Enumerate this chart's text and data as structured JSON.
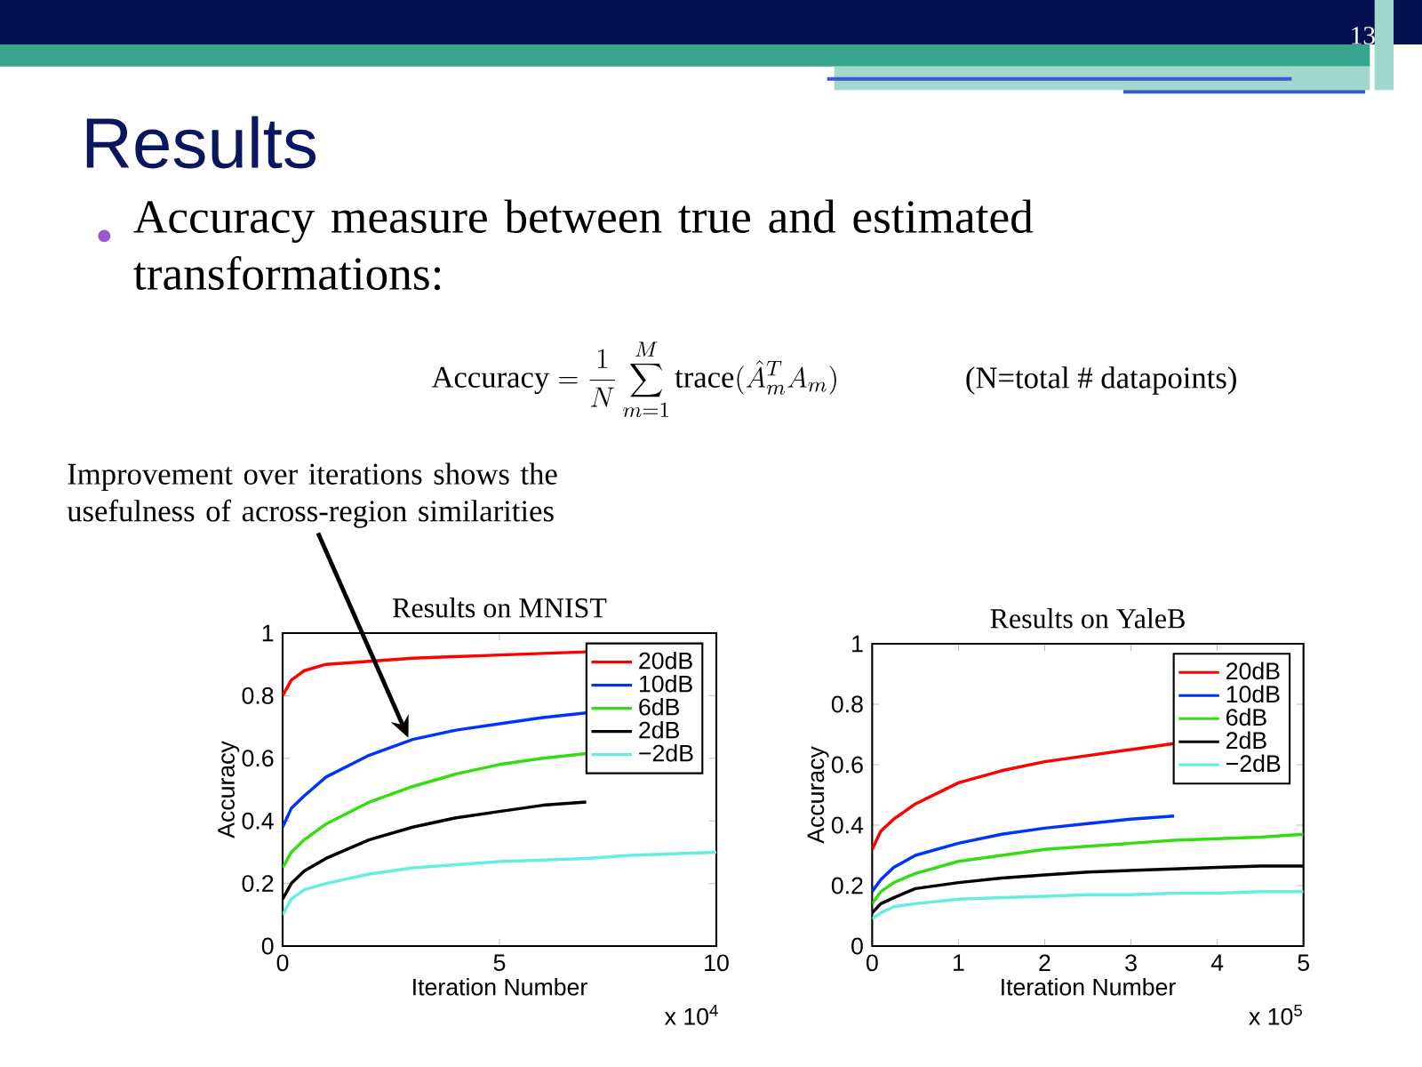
{
  "chart_data": [
    {
      "type": "line",
      "title": "Results on MNIST",
      "xlabel": "Iteration Number",
      "ylabel": "Accuracy",
      "x": [
        0,
        0.2,
        0.5,
        1,
        2,
        3,
        4,
        5,
        6,
        7,
        8,
        9,
        10
      ],
      "xlim": [
        0,
        10
      ],
      "ylim": [
        0,
        1
      ],
      "xticks": [
        0,
        5,
        10
      ],
      "yticks": [
        0,
        0.2,
        0.4,
        0.6,
        0.8,
        1
      ],
      "legend": "top right",
      "marker": "none",
      "line_style": "solid",
      "series": [
        {
          "name": "20dB",
          "color": "#ff0000",
          "values": [
            0.8,
            0.85,
            0.88,
            0.9,
            0.91,
            0.92,
            0.925,
            0.93,
            0.935,
            0.94,
            null,
            null,
            null
          ]
        },
        {
          "name": "10dB",
          "color": "#0033ff",
          "values": [
            0.38,
            0.44,
            0.48,
            0.54,
            0.61,
            0.66,
            0.69,
            0.71,
            0.73,
            0.745,
            null,
            null,
            null
          ]
        },
        {
          "name": "6dB",
          "color": "#33dd11",
          "values": [
            0.25,
            0.3,
            0.34,
            0.39,
            0.46,
            0.51,
            0.55,
            0.58,
            0.6,
            0.615,
            null,
            null,
            null
          ]
        },
        {
          "name": "2dB",
          "color": "#000000",
          "values": [
            0.15,
            0.2,
            0.24,
            0.28,
            0.34,
            0.38,
            0.41,
            0.43,
            0.45,
            0.46,
            null,
            null,
            null
          ]
        },
        {
          "name": "−2dB",
          "color": "#66eedd",
          "values": [
            0.1,
            0.15,
            0.18,
            0.2,
            0.23,
            0.25,
            0.26,
            0.27,
            0.275,
            0.28,
            0.29,
            0.295,
            0.3
          ]
        }
      ],
      "annotations": [
        "13",
        "Results",
        "Accuracy measure between true and estimated transformations:",
        "\\mathrm{Accuracy} = \\frac{1}{N}\\sum_{m=1}^{M}\\mathrm{trace}(\\hat{A}_m^T A_m)",
        "(N=total # datapoints)",
        {
          "text": "Improvement over iterations shows the usefulness of across-region similarities",
          "x": 2.9,
          "y": 0.665
        },
        "x 10$^{4}$"
      ]
    },
    {
      "type": "line",
      "title": "Results on YaleB",
      "xlabel": "Iteration Number",
      "ylabel": "Accuracy",
      "x": [
        0,
        0.1,
        0.25,
        0.5,
        1,
        1.5,
        2,
        2.5,
        3,
        3.5,
        4,
        4.5,
        5
      ],
      "xlim": [
        0,
        5
      ],
      "ylim": [
        0,
        1
      ],
      "xticks": [
        0,
        1,
        2,
        3,
        4,
        5
      ],
      "yticks": [
        0,
        0.2,
        0.4,
        0.6,
        0.8,
        1
      ],
      "legend": "top right",
      "marker": "none",
      "line_style": "solid",
      "series": [
        {
          "name": "20dB",
          "color": "#ff0000",
          "values": [
            0.32,
            0.38,
            0.42,
            0.47,
            0.54,
            0.58,
            0.61,
            0.63,
            0.65,
            0.67,
            null,
            null,
            null
          ]
        },
        {
          "name": "10dB",
          "color": "#0033ff",
          "values": [
            0.18,
            0.22,
            0.26,
            0.3,
            0.34,
            0.37,
            0.39,
            0.405,
            0.42,
            0.43,
            null,
            null,
            null
          ]
        },
        {
          "name": "6dB",
          "color": "#33dd11",
          "values": [
            0.14,
            0.18,
            0.21,
            0.24,
            0.28,
            0.3,
            0.32,
            0.33,
            0.34,
            0.35,
            0.355,
            0.36,
            0.37
          ]
        },
        {
          "name": "2dB",
          "color": "#000000",
          "values": [
            0.11,
            0.14,
            0.16,
            0.19,
            0.21,
            0.225,
            0.235,
            0.245,
            0.25,
            0.255,
            0.26,
            0.265,
            0.265
          ]
        },
        {
          "name": "−2dB",
          "color": "#66eedd",
          "values": [
            0.09,
            0.11,
            0.13,
            0.14,
            0.155,
            0.16,
            0.165,
            0.17,
            0.17,
            0.175,
            0.175,
            0.18,
            0.18
          ]
        }
      ],
      "annotations": [
        "x 10$^{5}$"
      ]
    }
  ]
}
